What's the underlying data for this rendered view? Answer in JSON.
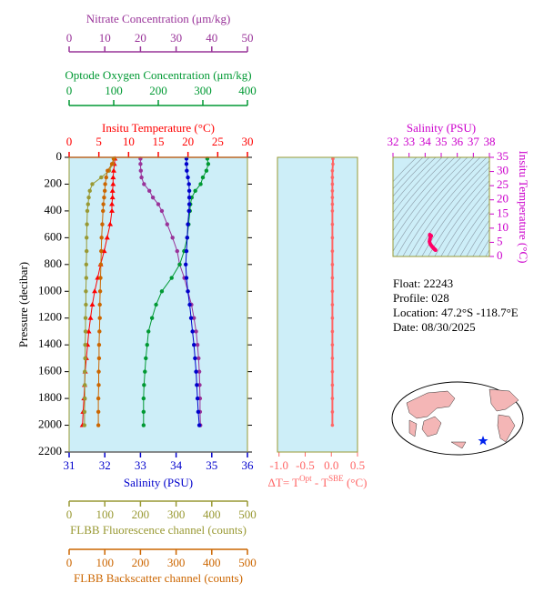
{
  "chart_data": [
    {
      "type": "profile",
      "y_label": "Pressure (decibar)",
      "ylim": [
        0,
        2200
      ],
      "yticks": [
        0,
        200,
        400,
        600,
        800,
        1000,
        1200,
        1400,
        1600,
        1800,
        2000,
        2200
      ],
      "background": "#cdeef8",
      "pressure": [
        10,
        50,
        100,
        150,
        200,
        250,
        300,
        350,
        400,
        500,
        600,
        700,
        800,
        900,
        1000,
        1100,
        1200,
        1300,
        1400,
        1500,
        1600,
        1700,
        1800,
        1900,
        2000
      ],
      "axes": [
        {
          "label": "Nitrate Concentration (μm/kg)",
          "xlim": [
            0,
            50
          ],
          "xticks": [
            0,
            10,
            20,
            30,
            40,
            50
          ],
          "color": "#993399",
          "marker": "circle",
          "values": [
            20.0,
            20.0,
            20.1,
            20.3,
            21.0,
            22.5,
            23.5,
            25.0,
            26.0,
            27.5,
            29.0,
            30.3,
            31.0,
            32.3,
            33.3,
            34.3,
            35.0,
            35.6,
            36.0,
            36.3,
            36.5,
            36.6,
            36.7,
            36.7,
            36.8
          ]
        },
        {
          "label": "Optode Oxygen Concentration (μm/kg)",
          "xlim": [
            0,
            400
          ],
          "xticks": [
            0,
            100,
            200,
            300,
            400
          ],
          "color": "#009933",
          "marker": "circle",
          "values": [
            310,
            312,
            308,
            300,
            295,
            283,
            275,
            272,
            271,
            268,
            265,
            258,
            248,
            230,
            208,
            195,
            186,
            178,
            175,
            172,
            170,
            168,
            167,
            167,
            167
          ]
        },
        {
          "label": "Insitu Temperature (°C)",
          "xlim": [
            0,
            30
          ],
          "xticks": [
            0,
            5,
            10,
            15,
            20,
            25,
            30
          ],
          "color": "#ff0000",
          "marker": "triangle",
          "values": [
            7.7,
            7.6,
            7.5,
            7.4,
            7.4,
            7.3,
            7.3,
            7.2,
            7.2,
            6.9,
            6.4,
            5.9,
            5.3,
            4.8,
            4.3,
            3.9,
            3.6,
            3.3,
            3.1,
            2.9,
            2.7,
            2.6,
            2.5,
            2.35,
            2.25
          ]
        },
        {
          "label": "Salinity (PSU)",
          "xlim": [
            31,
            36
          ],
          "xticks": [
            31,
            32,
            33,
            34,
            35,
            36
          ],
          "color": "#0000cc",
          "marker": "circle",
          "values": [
            34.29,
            34.29,
            34.3,
            34.33,
            34.36,
            34.37,
            34.37,
            34.37,
            34.36,
            34.33,
            34.31,
            34.29,
            34.27,
            34.29,
            34.33,
            34.38,
            34.42,
            34.46,
            34.5,
            34.53,
            34.56,
            34.58,
            34.6,
            34.62,
            34.65
          ]
        },
        {
          "label": "FLBB Fluorescence channel (counts)",
          "xlim": [
            0,
            500
          ],
          "xticks": [
            0,
            100,
            200,
            300,
            400,
            500
          ],
          "color": "#999933",
          "marker": "circle",
          "values": [
            125,
            122,
            112,
            90,
            65,
            58,
            55,
            53,
            51,
            50,
            49,
            49,
            48,
            48,
            47,
            47,
            46,
            46,
            45,
            45,
            44,
            44,
            44,
            43,
            43
          ]
        },
        {
          "label": "FLBB Backscatter channel (counts)",
          "xlim": [
            0,
            500
          ],
          "xticks": [
            0,
            100,
            200,
            300,
            400,
            500
          ],
          "color": "#cc6600",
          "marker": "circle",
          "values": [
            125,
            120,
            108,
            104,
            101,
            100,
            98,
            96,
            95,
            93,
            91,
            90,
            89,
            88,
            87,
            86,
            86,
            85,
            84,
            84,
            83,
            83,
            82,
            82,
            82
          ]
        }
      ]
    },
    {
      "type": "delta",
      "x_label_parts": [
        "ΔT= T",
        "Opt",
        " - T",
        "SBE",
        " (°C)"
      ],
      "xlim": [
        -1.03,
        0.5
      ],
      "xticks": [
        {
          "value": -1.0,
          "label": "-1.0"
        },
        -0.5,
        {
          "value": 0.0,
          "label": "0.0"
        },
        0.5
      ],
      "ylim": [
        0,
        2200
      ],
      "background": "#cdeef8",
      "color": "#ff6666",
      "y": [
        10,
        50,
        100,
        150,
        200,
        250,
        300,
        350,
        400,
        500,
        600,
        700,
        800,
        900,
        1000,
        1100,
        1200,
        1300,
        1400,
        1500,
        1600,
        1700,
        1800,
        1900,
        2000
      ],
      "values": [
        0.03,
        0.03,
        0.02,
        0.02,
        0.02,
        0.02,
        0.02,
        0.02,
        0.02,
        0.02,
        0.02,
        0.02,
        0.02,
        0.02,
        0.02,
        0.02,
        0.02,
        0.02,
        0.02,
        0.02,
        0.02,
        0.02,
        0.02,
        0.02,
        0.02
      ]
    },
    {
      "type": "ts",
      "x_label": "Salinity (PSU)",
      "y_label": "Insitu Temperature (°C)",
      "xlim": [
        32,
        38
      ],
      "xticks": [
        32,
        33,
        34,
        35,
        36,
        37,
        38
      ],
      "ylim": [
        0,
        35
      ],
      "yticks": [
        0,
        5,
        10,
        15,
        20,
        25,
        30,
        35
      ],
      "background": "#cdeef8",
      "axis_color": "#cc00cc",
      "color": "#ff0066",
      "x": [
        34.29,
        34.29,
        34.3,
        34.33,
        34.36,
        34.37,
        34.37,
        34.37,
        34.36,
        34.33,
        34.31,
        34.29,
        34.27,
        34.29,
        34.33,
        34.38,
        34.42,
        34.46,
        34.5,
        34.53,
        34.56,
        34.58,
        34.6,
        34.62,
        34.65
      ],
      "y": [
        7.7,
        7.6,
        7.5,
        7.4,
        7.4,
        7.3,
        7.3,
        7.2,
        7.2,
        6.9,
        6.4,
        5.9,
        5.3,
        4.8,
        4.3,
        3.9,
        3.6,
        3.3,
        3.1,
        2.9,
        2.7,
        2.6,
        2.5,
        2.35,
        2.25
      ]
    }
  ],
  "float_info": [
    "Float:  22243",
    "Profile:  028",
    "Location:  47.2°S  -118.7°E",
    "Date:  08/30/2025"
  ]
}
